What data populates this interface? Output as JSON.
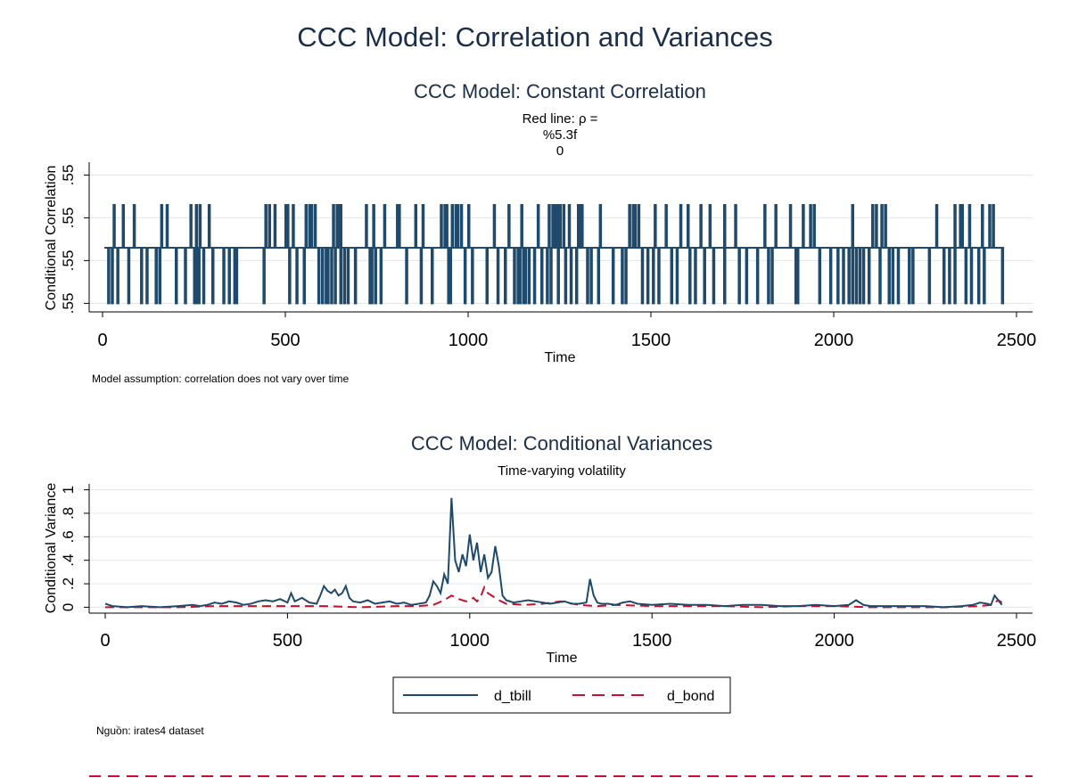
{
  "figure": {
    "title": "CCC Model: Correlation and Variances",
    "source_note": "Nguồn: irates4 dataset"
  },
  "colors": {
    "title": "#1a2e4a",
    "tbill": "#1f4a6b",
    "bond": "#c8102e",
    "grid": "#e6ebf0",
    "axis": "#000000"
  },
  "chart_data": [
    {
      "type": "line",
      "title": "CCC Model: Constant Correlation",
      "subtitle_lines": [
        "Red line: ρ =",
        "%5.3f",
        "0"
      ],
      "xlabel": "Time",
      "ylabel": "Conditional Correlation",
      "note": "Model assumption: correlation does not vary over time",
      "xlim": [
        0,
        2500
      ],
      "x_ticks": [
        0,
        500,
        1000,
        1500,
        2000,
        2500
      ],
      "y_ticks": [
        0.548,
        0.549,
        0.55,
        0.551
      ],
      "y_tick_labels": [
        ".55",
        ".55",
        ".55",
        ".55"
      ],
      "ylim": [
        0.5478,
        0.5513
      ],
      "grid": true,
      "series": [
        {
          "x_range": [
            5,
            2458
          ],
          "base_level": 0.5493,
          "up_level": 0.5503,
          "down_level": 0.548,
          "up_spikes": [
            30,
            55,
            85,
            160,
            175,
            240,
            255,
            265,
            290,
            445,
            455,
            470,
            500,
            505,
            520,
            555,
            565,
            570,
            580,
            630,
            640,
            645,
            650,
            720,
            740,
            770,
            805,
            810,
            855,
            875,
            925,
            935,
            940,
            955,
            965,
            970,
            980,
            1000,
            1070,
            1110,
            1145,
            1190,
            1220,
            1230,
            1235,
            1240,
            1245,
            1250,
            1260,
            1275,
            1300,
            1305,
            1310,
            1360,
            1440,
            1450,
            1455,
            1465,
            1510,
            1540,
            1580,
            1600,
            1635,
            1660,
            1700,
            1730,
            1810,
            1840,
            1880,
            1915,
            1935,
            1945,
            2050,
            2105,
            2115,
            2130,
            2140,
            2280,
            2330,
            2345,
            2350,
            2370,
            2405,
            2425,
            2435
          ],
          "down_spikes": [
            15,
            25,
            40,
            70,
            105,
            120,
            145,
            155,
            200,
            225,
            250,
            258,
            262,
            275,
            300,
            330,
            345,
            360,
            365,
            440,
            510,
            530,
            550,
            590,
            600,
            610,
            615,
            625,
            635,
            650,
            660,
            670,
            690,
            730,
            735,
            745,
            760,
            830,
            870,
            900,
            945,
            950,
            990,
            1010,
            1050,
            1080,
            1100,
            1125,
            1135,
            1140,
            1150,
            1155,
            1165,
            1180,
            1200,
            1215,
            1225,
            1245,
            1265,
            1280,
            1295,
            1325,
            1335,
            1355,
            1395,
            1420,
            1430,
            1475,
            1490,
            1505,
            1520,
            1555,
            1570,
            1605,
            1620,
            1645,
            1670,
            1700,
            1740,
            1760,
            1790,
            1820,
            1830,
            1895,
            1900,
            1960,
            1990,
            2010,
            2025,
            2040,
            2050,
            2060,
            2070,
            2080,
            2095,
            2125,
            2150,
            2160,
            2175,
            2205,
            2215,
            2260,
            2300,
            2315,
            2330,
            2360,
            2375,
            2395,
            2410,
            2460
          ]
        }
      ]
    },
    {
      "type": "line",
      "title": "CCC Model: Conditional Variances",
      "subtitle": "Time-varying volatility",
      "xlabel": "Time",
      "ylabel": "Conditional Variance",
      "xlim": [
        0,
        2500
      ],
      "x_ticks": [
        0,
        500,
        1000,
        1500,
        2000,
        2500
      ],
      "y_ticks": [
        0,
        0.2,
        0.4,
        0.6,
        0.8,
        1
      ],
      "y_tick_labels": [
        "0",
        ".2",
        ".4",
        ".6",
        ".8",
        "1"
      ],
      "ylim": [
        -0.05,
        1.05
      ],
      "grid": true,
      "legend_position": "bottom-center",
      "series": [
        {
          "name": "d_tbill",
          "style": "solid",
          "x": [
            0,
            20,
            60,
            100,
            150,
            200,
            240,
            260,
            280,
            300,
            320,
            340,
            360,
            380,
            400,
            420,
            440,
            460,
            480,
            500,
            510,
            520,
            540,
            560,
            580,
            590,
            600,
            610,
            620,
            630,
            640,
            650,
            660,
            670,
            680,
            700,
            720,
            740,
            760,
            780,
            800,
            820,
            840,
            860,
            880,
            890,
            900,
            910,
            920,
            930,
            940,
            950,
            960,
            970,
            980,
            990,
            1000,
            1010,
            1020,
            1030,
            1040,
            1050,
            1060,
            1070,
            1080,
            1090,
            1100,
            1120,
            1140,
            1160,
            1180,
            1200,
            1220,
            1240,
            1260,
            1280,
            1300,
            1320,
            1330,
            1340,
            1350,
            1360,
            1380,
            1400,
            1420,
            1440,
            1460,
            1500,
            1550,
            1600,
            1650,
            1700,
            1750,
            1800,
            1850,
            1900,
            1950,
            2000,
            2040,
            2060,
            2080,
            2100,
            2150,
            2200,
            2250,
            2300,
            2350,
            2380,
            2400,
            2420,
            2430,
            2440,
            2450,
            2460
          ],
          "values": [
            0.03,
            0.01,
            0.0,
            0.01,
            0.0,
            0.01,
            0.02,
            0.01,
            0.02,
            0.04,
            0.03,
            0.05,
            0.04,
            0.02,
            0.03,
            0.05,
            0.06,
            0.05,
            0.07,
            0.04,
            0.12,
            0.05,
            0.08,
            0.04,
            0.03,
            0.1,
            0.18,
            0.14,
            0.12,
            0.15,
            0.1,
            0.12,
            0.18,
            0.08,
            0.05,
            0.04,
            0.06,
            0.03,
            0.04,
            0.05,
            0.03,
            0.04,
            0.02,
            0.03,
            0.04,
            0.1,
            0.22,
            0.18,
            0.12,
            0.28,
            0.2,
            0.93,
            0.4,
            0.3,
            0.45,
            0.35,
            0.62,
            0.4,
            0.55,
            0.3,
            0.45,
            0.25,
            0.3,
            0.52,
            0.35,
            0.1,
            0.06,
            0.04,
            0.05,
            0.06,
            0.05,
            0.04,
            0.03,
            0.04,
            0.05,
            0.03,
            0.03,
            0.04,
            0.24,
            0.1,
            0.04,
            0.03,
            0.03,
            0.02,
            0.04,
            0.05,
            0.03,
            0.02,
            0.03,
            0.02,
            0.02,
            0.01,
            0.02,
            0.02,
            0.01,
            0.01,
            0.02,
            0.01,
            0.02,
            0.06,
            0.02,
            0.01,
            0.01,
            0.01,
            0.01,
            0.0,
            0.01,
            0.02,
            0.04,
            0.03,
            0.02,
            0.1,
            0.06,
            0.02
          ]
        },
        {
          "name": "d_bond",
          "style": "dashed",
          "x": [
            0,
            100,
            200,
            300,
            400,
            500,
            600,
            700,
            800,
            860,
            900,
            930,
            950,
            970,
            990,
            1000,
            1010,
            1020,
            1030,
            1040,
            1050,
            1060,
            1070,
            1080,
            1100,
            1150,
            1200,
            1250,
            1300,
            1350,
            1400,
            1500,
            1600,
            1700,
            1800,
            1900,
            2000,
            2100,
            2200,
            2300,
            2400,
            2430,
            2450,
            2460
          ],
          "values": [
            0.0,
            0.0,
            0.0,
            0.01,
            0.01,
            0.01,
            0.01,
            0.0,
            0.01,
            0.01,
            0.02,
            0.06,
            0.1,
            0.07,
            0.05,
            0.06,
            0.08,
            0.05,
            0.09,
            0.17,
            0.12,
            0.1,
            0.08,
            0.06,
            0.03,
            0.02,
            0.03,
            0.05,
            0.02,
            0.01,
            0.02,
            0.01,
            0.01,
            0.01,
            0.0,
            0.01,
            0.01,
            0.0,
            0.0,
            0.0,
            0.01,
            0.02,
            0.06,
            0.04
          ]
        }
      ]
    }
  ]
}
